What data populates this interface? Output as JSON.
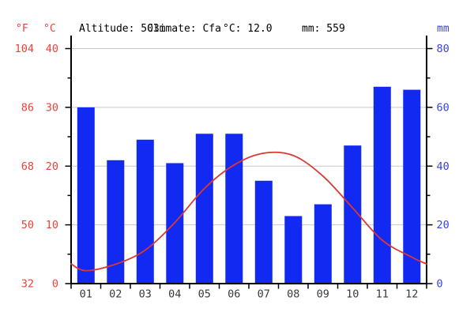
{
  "header": {
    "f_unit": "°F",
    "c_unit": "°C",
    "mm_unit": "mm",
    "altitude": "Altitude: 503m",
    "climate": "Climate: Cfa",
    "mean_temp": "°C: 12.0",
    "total_precip": "mm: 559"
  },
  "chart_data": {
    "type": "bar",
    "subtype": "climograph-bar-plus-line",
    "categories": [
      "01",
      "02",
      "03",
      "04",
      "05",
      "06",
      "07",
      "08",
      "09",
      "10",
      "11",
      "12"
    ],
    "series": [
      {
        "name": "precipitation",
        "type": "bar",
        "unit": "mm",
        "values": [
          60,
          42,
          49,
          41,
          51,
          51,
          35,
          23,
          27,
          47,
          67,
          66
        ],
        "color": "#1129f0"
      },
      {
        "name": "average-temperature",
        "type": "line",
        "unit": "°C",
        "values": [
          2.2,
          3.3,
          5.7,
          10.4,
          16.2,
          20.2,
          22.2,
          21.8,
          18.3,
          12.9,
          7.4,
          4.5
        ],
        "color": "#dd3731"
      }
    ],
    "axes": {
      "left_fahrenheit": {
        "unit": "°F",
        "ticks": [
          104,
          86,
          68,
          50,
          32
        ],
        "color": "#ef4137"
      },
      "left_celsius": {
        "unit": "°C",
        "ticks": [
          40,
          30,
          20,
          10,
          0
        ],
        "minor_ticks": [
          35,
          25,
          15,
          5
        ],
        "range": [
          0,
          40
        ],
        "color": "#ef4137"
      },
      "right_millimeters": {
        "unit": "mm",
        "ticks": [
          80,
          60,
          40,
          20,
          0
        ],
        "minor_ticks": [
          70,
          50,
          30,
          10
        ],
        "range": [
          0,
          80
        ],
        "color": "#3544e0"
      }
    },
    "grid": true,
    "grid_color": "#c9c9c9",
    "axis_color": "#000000",
    "month_label_color": "#3a3a3a",
    "xlabel": "",
    "ylabel_left": "°C",
    "ylabel_right": "mm"
  }
}
